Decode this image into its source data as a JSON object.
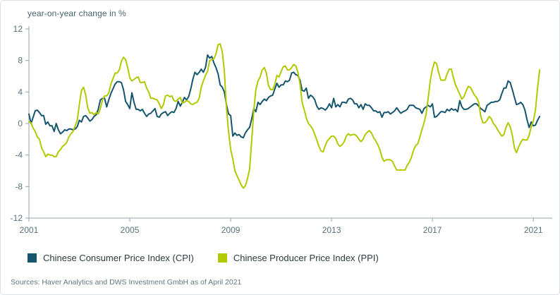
{
  "header": {
    "title": "year-on-year change in %"
  },
  "chart_data": {
    "type": "line",
    "title": "year-on-year change in %",
    "xlabel": "",
    "ylabel": "year-on-year change in %",
    "x_start_year": 2001,
    "x_step_months": 1,
    "xlim": [
      2001,
      2021.75
    ],
    "ylim": [
      -12,
      12
    ],
    "yticks": [
      12,
      8,
      4,
      0,
      -4,
      -8,
      -12
    ],
    "xticks": [
      2001,
      2005,
      2009,
      2013,
      2017,
      2021
    ],
    "grid": false,
    "legend_position": "bottom",
    "series": [
      {
        "name": "Chinese Consumer Price Index (CPI)",
        "color": "#16556e",
        "values": [
          1.2,
          0.0,
          0.8,
          1.6,
          1.7,
          1.4,
          1.0,
          1.0,
          -0.1,
          0.2,
          -0.3,
          -0.3,
          -1.0,
          0.0,
          -0.8,
          -1.3,
          -1.1,
          -0.8,
          -0.9,
          -0.7,
          -0.7,
          -0.8,
          -0.7,
          -0.4,
          0.4,
          0.2,
          0.9,
          1.0,
          0.7,
          0.3,
          0.5,
          0.9,
          1.1,
          1.8,
          3.0,
          3.2,
          3.2,
          2.1,
          3.0,
          3.8,
          4.4,
          5.0,
          5.3,
          5.3,
          5.2,
          4.3,
          2.8,
          2.4,
          1.9,
          3.9,
          2.7,
          1.8,
          1.8,
          1.6,
          1.8,
          1.3,
          0.9,
          1.2,
          1.3,
          1.6,
          1.9,
          0.9,
          0.8,
          1.2,
          1.4,
          1.5,
          1.0,
          1.3,
          1.5,
          1.4,
          1.9,
          2.8,
          2.2,
          2.7,
          3.3,
          3.0,
          3.4,
          4.4,
          5.6,
          6.5,
          6.2,
          6.5,
          6.9,
          6.5,
          7.1,
          8.7,
          8.3,
          8.5,
          7.7,
          7.1,
          6.3,
          4.9,
          4.6,
          4.0,
          2.4,
          1.2,
          1.0,
          -1.6,
          -1.2,
          -1.5,
          -1.4,
          -1.7,
          -1.8,
          -1.2,
          -0.8,
          -0.5,
          0.6,
          1.9,
          1.5,
          2.7,
          2.4,
          2.8,
          3.1,
          2.9,
          3.3,
          3.5,
          3.6,
          4.4,
          5.1,
          4.6,
          4.9,
          4.9,
          5.4,
          5.3,
          5.5,
          6.4,
          6.5,
          6.2,
          6.1,
          5.5,
          4.2,
          4.1,
          4.5,
          3.2,
          3.6,
          3.4,
          3.0,
          2.2,
          1.8,
          2.0,
          1.9,
          1.7,
          2.0,
          2.5,
          2.0,
          3.2,
          2.1,
          2.4,
          2.1,
          2.7,
          2.7,
          2.6,
          3.1,
          3.2,
          3.0,
          2.5,
          2.5,
          2.0,
          2.4,
          1.8,
          2.5,
          2.3,
          2.3,
          2.0,
          1.6,
          1.6,
          1.4,
          1.5,
          0.8,
          1.4,
          1.4,
          1.5,
          1.2,
          1.4,
          1.6,
          2.0,
          1.6,
          1.3,
          1.5,
          1.6,
          1.8,
          2.3,
          2.3,
          2.3,
          2.0,
          1.9,
          1.8,
          1.3,
          1.9,
          2.1,
          2.3,
          2.1,
          2.5,
          0.8,
          0.9,
          1.2,
          1.5,
          1.5,
          1.4,
          1.8,
          1.6,
          1.9,
          1.7,
          1.8,
          1.5,
          2.9,
          2.1,
          1.8,
          1.8,
          1.9,
          2.1,
          2.3,
          2.5,
          2.5,
          2.2,
          1.9,
          1.7,
          1.5,
          2.3,
          2.5,
          2.7,
          2.7,
          2.8,
          2.8,
          3.0,
          3.8,
          4.5,
          4.5,
          5.4,
          5.2,
          4.3,
          3.3,
          2.4,
          2.5,
          2.7,
          2.4,
          1.7,
          0.5,
          -0.5,
          0.2,
          -0.3,
          -0.2,
          0.4,
          0.9
        ]
      },
      {
        "name": "Chinese Producer Price Index (PPI)",
        "color": "#b2c900",
        "values": [
          0.2,
          0.1,
          -0.6,
          -1.0,
          -1.7,
          -2.0,
          -3.1,
          -3.6,
          -4.2,
          -3.9,
          -4.0,
          -4.0,
          -4.2,
          -4.2,
          -3.6,
          -3.3,
          -2.9,
          -2.7,
          -2.4,
          -1.7,
          -1.3,
          -1.0,
          -0.3,
          0.4,
          2.4,
          4.2,
          4.6,
          3.6,
          2.0,
          1.3,
          1.4,
          1.1,
          1.4,
          1.2,
          1.9,
          3.0,
          3.5,
          3.5,
          3.9,
          5.0,
          5.7,
          6.4,
          6.4,
          6.8,
          7.9,
          8.4,
          8.1,
          7.1,
          5.8,
          5.4,
          5.6,
          5.8,
          5.9,
          5.2,
          5.2,
          5.3,
          4.5,
          4.0,
          3.2,
          3.2,
          3.1,
          3.0,
          2.5,
          1.9,
          2.4,
          3.5,
          3.6,
          3.4,
          3.5,
          2.9,
          2.8,
          3.1,
          3.3,
          2.6,
          2.7,
          2.9,
          2.8,
          2.5,
          2.4,
          2.6,
          2.7,
          3.2,
          4.6,
          5.4,
          6.1,
          6.6,
          8.0,
          8.1,
          8.2,
          8.8,
          10.0,
          10.1,
          9.1,
          6.6,
          2.0,
          -1.1,
          -3.3,
          -4.5,
          -6.0,
          -6.6,
          -7.2,
          -7.8,
          -8.2,
          -7.9,
          -7.0,
          -5.8,
          -2.1,
          1.7,
          4.3,
          5.4,
          5.9,
          6.8,
          7.1,
          6.4,
          4.8,
          4.3,
          4.3,
          5.0,
          6.1,
          5.9,
          6.6,
          7.2,
          7.3,
          6.8,
          6.8,
          7.1,
          7.5,
          7.3,
          6.5,
          5.0,
          2.7,
          1.7,
          0.7,
          0.0,
          -0.3,
          -0.7,
          -1.4,
          -2.1,
          -2.9,
          -3.5,
          -3.6,
          -2.8,
          -2.2,
          -1.9,
          -1.6,
          -1.6,
          -1.9,
          -2.6,
          -2.9,
          -2.7,
          -2.3,
          -1.6,
          -1.3,
          -1.5,
          -1.4,
          -1.4,
          -1.6,
          -2.0,
          -2.3,
          -2.0,
          -1.4,
          -1.1,
          -0.9,
          -1.2,
          -1.8,
          -2.2,
          -2.7,
          -3.3,
          -4.3,
          -4.8,
          -4.6,
          -4.6,
          -4.6,
          -4.8,
          -5.4,
          -5.9,
          -5.9,
          -5.9,
          -5.9,
          -5.9,
          -5.3,
          -4.9,
          -4.3,
          -3.4,
          -2.8,
          -2.6,
          -1.7,
          -0.8,
          0.1,
          1.2,
          3.3,
          5.5,
          6.9,
          7.8,
          7.6,
          6.4,
          5.5,
          5.5,
          5.5,
          6.3,
          6.9,
          6.9,
          5.8,
          4.9,
          4.3,
          3.7,
          3.1,
          3.4,
          4.1,
          4.7,
          4.6,
          4.1,
          3.6,
          3.3,
          2.7,
          0.9,
          0.1,
          0.1,
          0.4,
          0.9,
          0.6,
          0.0,
          -0.3,
          -0.8,
          -1.2,
          -1.6,
          -1.4,
          -0.5,
          0.1,
          -0.4,
          -1.5,
          -3.1,
          -3.7,
          -3.0,
          -2.4,
          -2.0,
          -2.1,
          -2.1,
          -1.5,
          -0.4,
          0.3,
          1.7,
          4.4,
          6.8
        ]
      }
    ]
  },
  "footer": {
    "source": "Sources: Haver Analytics and DWS Investment GmbH as of April 2021"
  },
  "colors": {
    "axis": "#93a4ac",
    "tick_text": "#5a7078",
    "title_text": "#46656f",
    "legend_text": "#2f3a3e",
    "source_text": "#66757b"
  }
}
